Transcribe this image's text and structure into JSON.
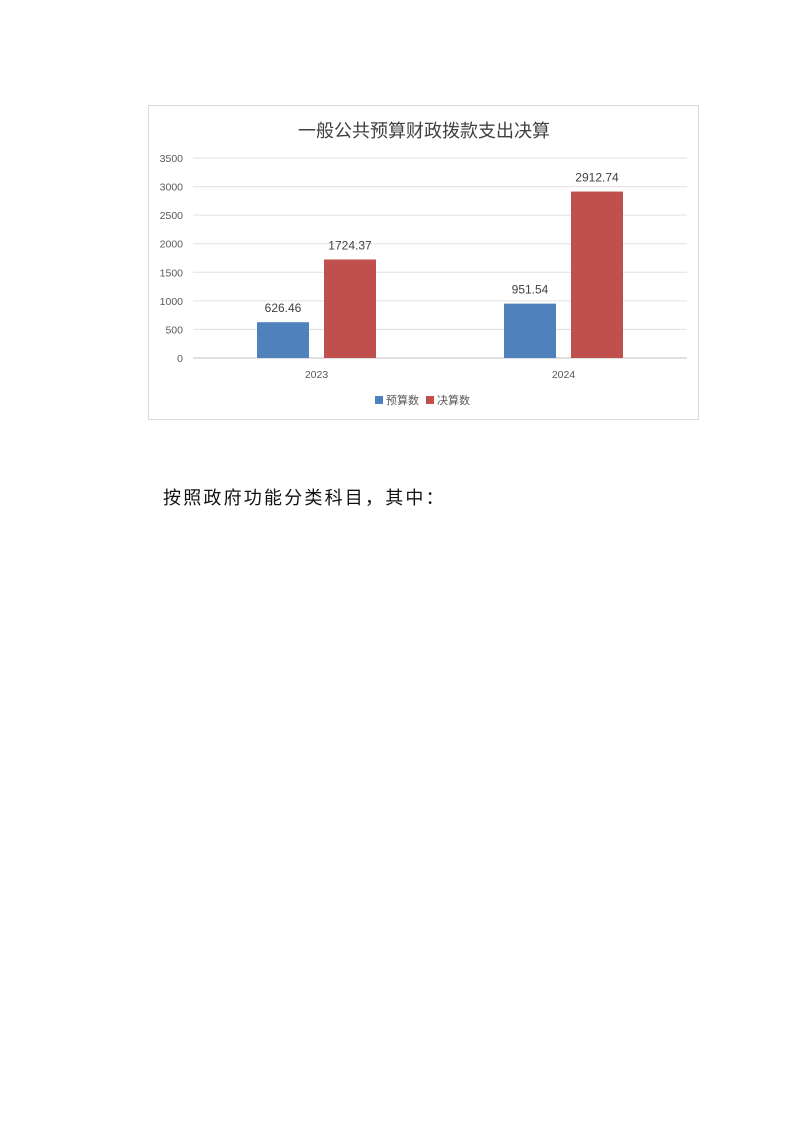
{
  "chart_data": {
    "type": "bar",
    "title": "一般公共预算财政拨款支出决算",
    "categories": [
      "2023",
      "2024"
    ],
    "series": [
      {
        "name": "预算数",
        "values": [
          626.46,
          951.54
        ],
        "color": "#4f81bd"
      },
      {
        "name": "决算数",
        "values": [
          1724.37,
          2912.74
        ],
        "color": "#c0504d"
      }
    ],
    "yticks": [
      0,
      500,
      1000,
      1500,
      2000,
      2500,
      3000,
      3500
    ],
    "ylim": [
      0,
      3500
    ],
    "grid": true,
    "legend": "bottom",
    "data_labels": true,
    "xlabel": "",
    "ylabel": ""
  },
  "body": {
    "text": "按照政府功能分类科目，其中："
  }
}
